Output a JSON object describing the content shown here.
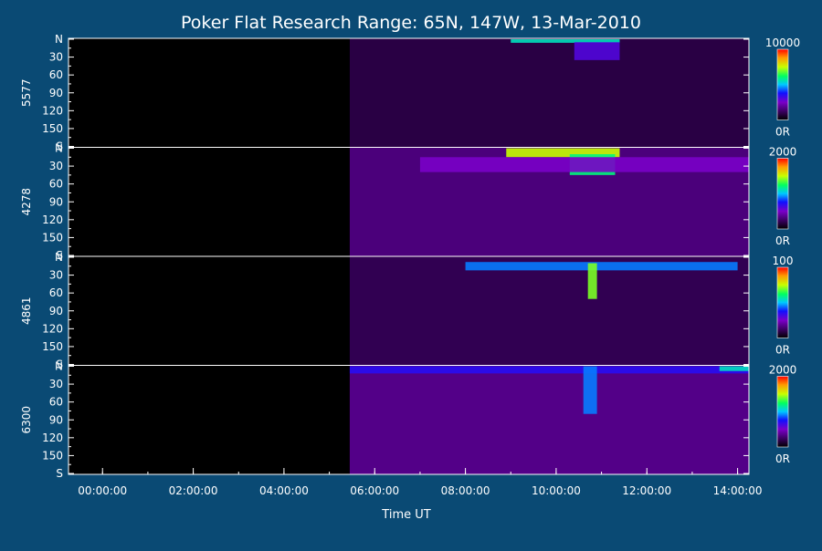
{
  "title": "Poker Flat Research Range: 65N, 147W, 13-Mar-2010",
  "colors": {
    "background": "#0a4a74",
    "plot_bg": "#000000",
    "frame": "#ffffff",
    "text": "#ffffff"
  },
  "chart_data": {
    "type": "heatmap",
    "title": "Poker Flat Research Range: 65N, 147W, 13-Mar-2010",
    "xlabel": "Time UT",
    "x_unit": "hours UT",
    "xlim": [
      -0.75,
      14.25
    ],
    "x_tick_hours": [
      0,
      2,
      4,
      6,
      8,
      10,
      12,
      14
    ],
    "x_tick_labels": [
      "00:00:00",
      "02:00:00",
      "04:00:00",
      "06:00:00",
      "08:00:00",
      "10:00:00",
      "12:00:00",
      "14:00:00"
    ],
    "data_start_hour": 5.45,
    "y_tick_labels": [
      "N",
      "30",
      "60",
      "90",
      "120",
      "150",
      "S"
    ],
    "y_tick_values": [
      0,
      30,
      60,
      90,
      120,
      150,
      180
    ],
    "ylim": [
      0,
      180
    ],
    "panels": [
      {
        "name": "5577",
        "colorbar_max": "10000",
        "colorbar_min": "0R",
        "background_level": 0.1,
        "features": [
          {
            "t0": 9.0,
            "t1": 11.4,
            "y0": 0,
            "y1": 6,
            "level": 0.55
          },
          {
            "t0": 10.4,
            "t1": 11.4,
            "y0": 5,
            "y1": 35,
            "level": 0.3
          }
        ]
      },
      {
        "name": "4278",
        "colorbar_max": "2000",
        "colorbar_min": "0R",
        "background_level": 0.18,
        "features": [
          {
            "t0": 8.9,
            "t1": 11.4,
            "y0": 0,
            "y1": 15,
            "level": 0.75
          },
          {
            "t0": 10.3,
            "t1": 11.3,
            "y0": 10,
            "y1": 45,
            "level": 0.6
          },
          {
            "t0": 7.0,
            "t1": 14.25,
            "y0": 15,
            "y1": 40,
            "level": 0.25
          }
        ]
      },
      {
        "name": "4861",
        "colorbar_max": "100",
        "colorbar_min": "0R",
        "background_level": 0.12,
        "features": [
          {
            "t0": 8.0,
            "t1": 14.0,
            "y0": 8,
            "y1": 22,
            "level": 0.45
          },
          {
            "t0": 10.7,
            "t1": 10.9,
            "y0": 10,
            "y1": 70,
            "level": 0.7
          }
        ]
      },
      {
        "name": "6300",
        "colorbar_max": "2000",
        "colorbar_min": "0R",
        "background_level": 0.2,
        "features": [
          {
            "t0": 5.45,
            "t1": 14.25,
            "y0": 0,
            "y1": 12,
            "level": 0.35
          },
          {
            "t0": 10.6,
            "t1": 10.9,
            "y0": 0,
            "y1": 80,
            "level": 0.45
          },
          {
            "t0": 13.6,
            "t1": 14.25,
            "y0": 0,
            "y1": 8,
            "level": 0.55
          }
        ]
      }
    ]
  }
}
